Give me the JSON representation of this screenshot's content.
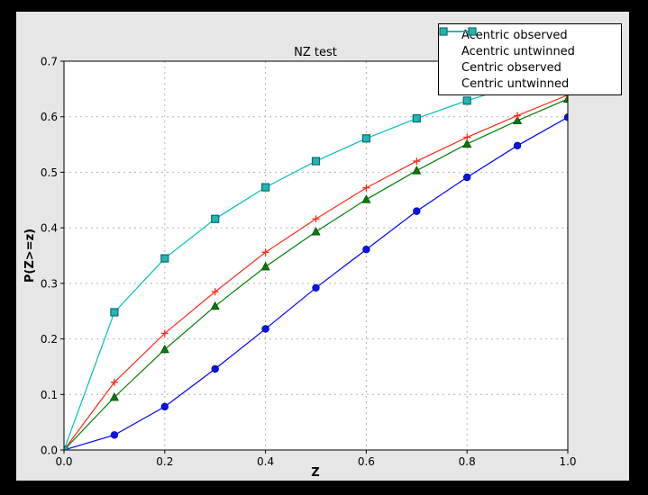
{
  "window": {
    "background": "#000000"
  },
  "figure": {
    "background": "#e6e6e6",
    "plot_background": "#ffffff",
    "frame_color": "#000000",
    "grid_color": "#b3b3b3",
    "text_color": "#000000"
  },
  "chart_data": {
    "type": "line",
    "title": "NZ test",
    "xlabel": "Z",
    "ylabel": "P(Z>=z)",
    "xlim": [
      0.0,
      1.0
    ],
    "ylim": [
      0.0,
      0.7
    ],
    "xticks": [
      "0.0",
      "0.2",
      "0.4",
      "0.6",
      "0.8",
      "1.0"
    ],
    "yticks": [
      "0.0",
      "0.1",
      "0.2",
      "0.3",
      "0.4",
      "0.5",
      "0.6",
      "0.7"
    ],
    "grid": true,
    "legend_position": "upper right",
    "x": [
      0.0,
      0.1,
      0.2,
      0.3,
      0.4,
      0.5,
      0.6,
      0.7,
      0.8,
      0.9,
      1.0
    ],
    "series": [
      {
        "name": "Acentric observed",
        "color": "#0000ff",
        "marker": "circle",
        "marker_fill": "#0a14e6",
        "marker_edge": "#0000b4",
        "legend_markers": false,
        "values": [
          0.0,
          0.027,
          0.078,
          0.146,
          0.218,
          0.292,
          0.361,
          0.43,
          0.491,
          0.548,
          0.599
        ]
      },
      {
        "name": "Acentric untwinned",
        "color": "#007f00",
        "marker": "triangle-up",
        "marker_fill": "#0a7a0a",
        "marker_edge": "#004d00",
        "legend_markers": false,
        "values": [
          0.0,
          0.095,
          0.181,
          0.259,
          0.33,
          0.393,
          0.451,
          0.503,
          0.551,
          0.593,
          0.632
        ]
      },
      {
        "name": "Centric observed",
        "color": "#ff2a1a",
        "marker": "plus",
        "marker_fill": "#ff2a1a",
        "marker_edge": "#ff2a1a",
        "legend_markers": true,
        "values": [
          0.0,
          0.122,
          0.21,
          0.285,
          0.356,
          0.416,
          0.472,
          0.52,
          0.563,
          0.602,
          0.639
        ]
      },
      {
        "name": "Centric untwinned",
        "color": "#00bfbf",
        "marker": "square",
        "marker_fill": "#23b4b4",
        "marker_edge": "#0c6b6b",
        "legend_markers": true,
        "values": [
          0.0,
          0.248,
          0.345,
          0.416,
          0.473,
          0.52,
          0.561,
          0.597,
          0.629,
          0.657,
          0.683
        ]
      }
    ]
  }
}
